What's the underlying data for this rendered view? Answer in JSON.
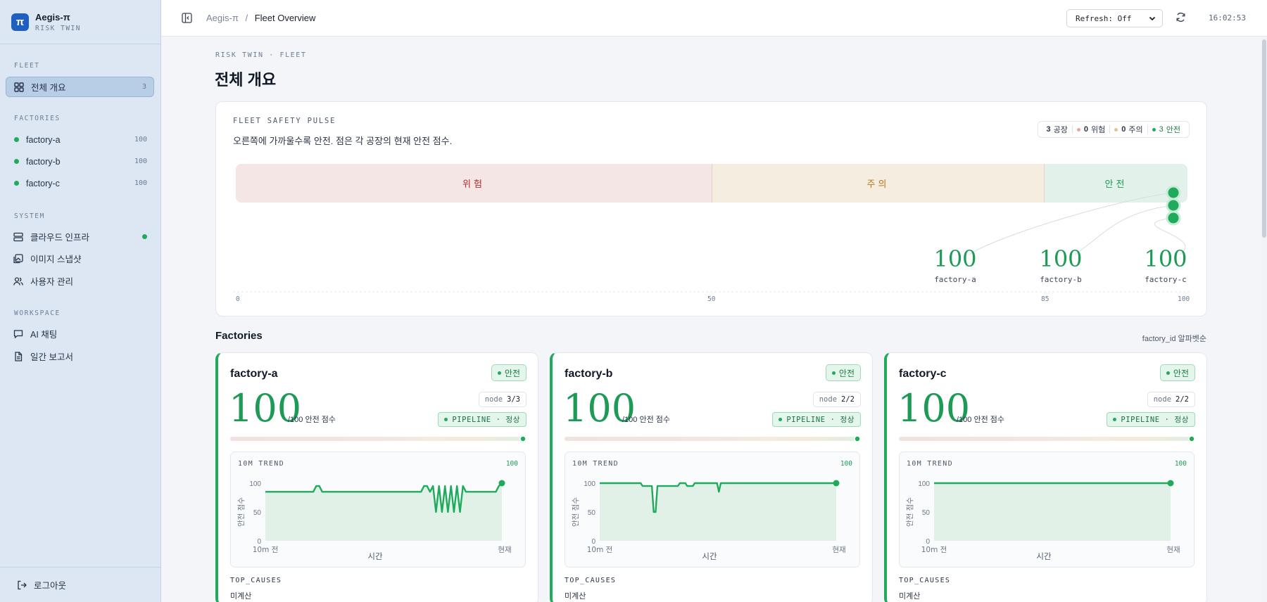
{
  "app": {
    "name": "Aegis-π",
    "subtitle": "RISK TWIN",
    "logo": "π"
  },
  "sidebar": {
    "sections": {
      "fleet": "FLEET",
      "factories": "FACTORIES",
      "system": "SYSTEM",
      "workspace": "WORKSPACE"
    },
    "overview": {
      "label": "전체 개요",
      "count": "3",
      "icon": "grid-icon"
    },
    "factories": [
      {
        "label": "factory-a",
        "score": "100"
      },
      {
        "label": "factory-b",
        "score": "100"
      },
      {
        "label": "factory-c",
        "score": "100"
      }
    ],
    "system": [
      {
        "label": "클라우드 인프라",
        "icon": "server-icon",
        "status": "online"
      },
      {
        "label": "이미지 스냅샷",
        "icon": "image-icon"
      },
      {
        "label": "사용자 관리",
        "icon": "users-icon"
      }
    ],
    "workspace": [
      {
        "label": "AI 채팅",
        "icon": "chat-icon"
      },
      {
        "label": "일간 보고서",
        "icon": "document-icon"
      }
    ],
    "logout": "로그아웃"
  },
  "topbar": {
    "breadcrumb_root": "Aegis-π",
    "breadcrumb_sep": "/",
    "breadcrumb_current": "Fleet Overview",
    "refresh_value": "Refresh: Off",
    "clock": "16:02:53"
  },
  "page": {
    "eyebrow": "RISK TWIN · FLEET",
    "title": "전체 개요"
  },
  "pulse": {
    "title": "FLEET SAFETY PULSE",
    "description": "오른쪽에 가까울수록 안전. 점은 각 공장의 현재 안전 점수.",
    "summary": {
      "factories_count": "3",
      "factories_label": "공장",
      "danger_count": "0",
      "danger_label": "위험",
      "warn_count": "0",
      "warn_label": "주의",
      "safe_count": "3",
      "safe_label": "안전"
    },
    "bands": {
      "danger": "위험",
      "warn": "주의",
      "safe": "안전"
    },
    "axis": [
      "0",
      "50",
      "85",
      "100"
    ],
    "markers": [
      {
        "name": "factory-a",
        "score": "100"
      },
      {
        "name": "factory-b",
        "score": "100"
      },
      {
        "name": "factory-c",
        "score": "100"
      }
    ],
    "colors": {
      "danger": "#b42a2a",
      "warn": "#b9771c",
      "safe": "#1faa5c"
    }
  },
  "factories_section": {
    "title": "Factories",
    "sort_label": "factory_id 알파벳순"
  },
  "factory_cards": [
    {
      "name": "factory-a",
      "status": "안전",
      "score": "100",
      "score_unit": "/100 안전 점수",
      "node_label": "node",
      "node_value": "3/3",
      "pipeline": "PIPELINE · 정상",
      "trend_label": "10M TREND",
      "trend_value": "100",
      "y_axis": "안전 점수",
      "x_axis": "시간",
      "x_start": "10m 전",
      "x_end": "현재",
      "y_ticks": [
        "100",
        "50",
        "0"
      ],
      "causes_label": "TOP_CAUSES",
      "causes_value": "미계산"
    },
    {
      "name": "factory-b",
      "status": "안전",
      "score": "100",
      "score_unit": "/100 안전 점수",
      "node_label": "node",
      "node_value": "2/2",
      "pipeline": "PIPELINE · 정상",
      "trend_label": "10M TREND",
      "trend_value": "100",
      "y_axis": "안전 점수",
      "x_axis": "시간",
      "x_start": "10m 전",
      "x_end": "현재",
      "y_ticks": [
        "100",
        "50",
        "0"
      ],
      "causes_label": "TOP_CAUSES",
      "causes_value": "미계산"
    },
    {
      "name": "factory-c",
      "status": "안전",
      "score": "100",
      "score_unit": "/100 안전 점수",
      "node_label": "node",
      "node_value": "2/2",
      "pipeline": "PIPELINE · 정상",
      "trend_label": "10M TREND",
      "trend_value": "100",
      "y_axis": "안전 점수",
      "x_axis": "시간",
      "x_start": "10m 전",
      "x_end": "현재",
      "y_ticks": [
        "100",
        "50",
        "0"
      ],
      "causes_label": "TOP_CAUSES",
      "causes_value": "미계산"
    }
  ],
  "trend_series": [
    [
      85,
      85,
      85,
      85,
      85,
      85,
      85,
      85,
      85,
      85,
      85,
      85,
      85,
      85,
      85,
      85,
      85,
      95,
      95,
      85,
      85,
      85,
      85,
      85,
      85,
      85,
      85,
      85,
      85,
      85,
      85,
      85,
      85,
      85,
      85,
      85,
      85,
      85,
      85,
      85,
      85,
      85,
      85,
      85,
      85,
      85,
      85,
      85,
      85,
      85,
      85,
      85,
      85,
      95,
      95,
      85,
      95,
      50,
      95,
      50,
      95,
      50,
      95,
      50,
      95,
      50,
      95,
      85,
      85,
      85,
      85,
      85,
      85,
      85,
      85,
      85,
      85,
      85,
      95,
      100
    ],
    [
      100,
      100,
      100,
      100,
      100,
      100,
      100,
      100,
      100,
      100,
      100,
      100,
      100,
      100,
      100,
      100,
      100,
      100,
      100,
      100,
      100,
      100,
      100,
      95,
      95,
      95,
      95,
      95,
      95,
      50,
      50,
      95,
      95,
      95,
      95,
      95,
      95,
      95,
      95,
      95,
      95,
      95,
      95,
      100,
      100,
      100,
      100,
      95,
      95,
      95,
      95,
      100,
      100,
      100,
      100,
      100,
      100,
      100,
      100,
      100,
      100,
      100,
      100,
      100,
      85,
      100,
      100,
      100,
      100,
      100,
      100,
      100,
      100,
      100,
      100,
      100,
      100,
      100,
      100,
      100,
      100,
      100,
      100,
      100,
      100,
      100,
      100,
      100,
      100,
      100,
      100,
      100,
      100,
      100,
      100,
      100,
      100,
      100,
      100,
      100,
      100,
      100,
      100,
      100,
      100,
      100,
      100,
      100,
      100,
      100,
      100,
      100,
      100,
      100,
      100,
      100,
      100,
      100,
      100,
      100,
      100,
      100,
      100,
      100,
      100,
      100,
      100,
      100
    ],
    [
      100,
      100,
      100,
      100,
      100,
      100,
      100,
      100,
      100,
      100,
      100,
      100,
      100,
      100,
      100,
      100,
      100,
      100,
      100,
      100,
      100,
      100,
      100,
      100,
      100,
      100,
      100,
      100,
      100,
      100,
      100,
      100,
      100,
      100,
      100,
      100,
      100,
      100,
      100,
      100,
      100,
      100,
      100,
      100,
      100,
      100,
      100,
      100,
      100,
      100,
      100,
      100,
      100,
      100,
      100,
      100,
      100,
      100,
      100,
      100,
      100,
      100,
      100,
      100,
      100,
      100,
      100,
      100,
      100,
      100,
      100,
      100,
      100,
      100,
      100,
      100,
      100,
      100,
      100,
      100,
      100,
      100,
      100,
      100,
      100,
      100,
      100,
      100,
      100,
      100,
      100,
      100,
      100,
      100,
      100,
      100,
      100,
      100,
      100,
      100,
      100,
      100,
      100,
      100,
      100,
      100,
      100,
      100,
      100,
      100,
      100,
      100,
      100,
      100,
      100,
      100,
      100,
      100,
      100,
      100,
      100,
      100,
      100,
      100,
      100,
      100,
      100,
      100,
      100,
      100,
      100,
      100,
      100,
      100,
      100,
      100,
      100,
      100,
      100,
      100,
      100,
      100,
      100,
      100,
      100,
      100,
      100,
      100,
      100,
      100,
      100,
      100,
      100,
      100,
      100,
      100,
      100,
      100,
      100,
      100,
      100,
      100,
      100,
      100,
      100,
      100,
      100,
      100,
      100,
      100,
      100,
      100,
      100,
      100,
      100,
      100,
      100,
      100,
      100,
      100,
      100,
      100,
      100,
      100,
      100,
      100,
      100,
      100,
      100,
      100,
      100,
      100,
      100,
      100,
      100,
      100,
      100,
      100,
      100,
      100,
      100,
      100,
      100,
      100,
      100,
      100
    ]
  ]
}
